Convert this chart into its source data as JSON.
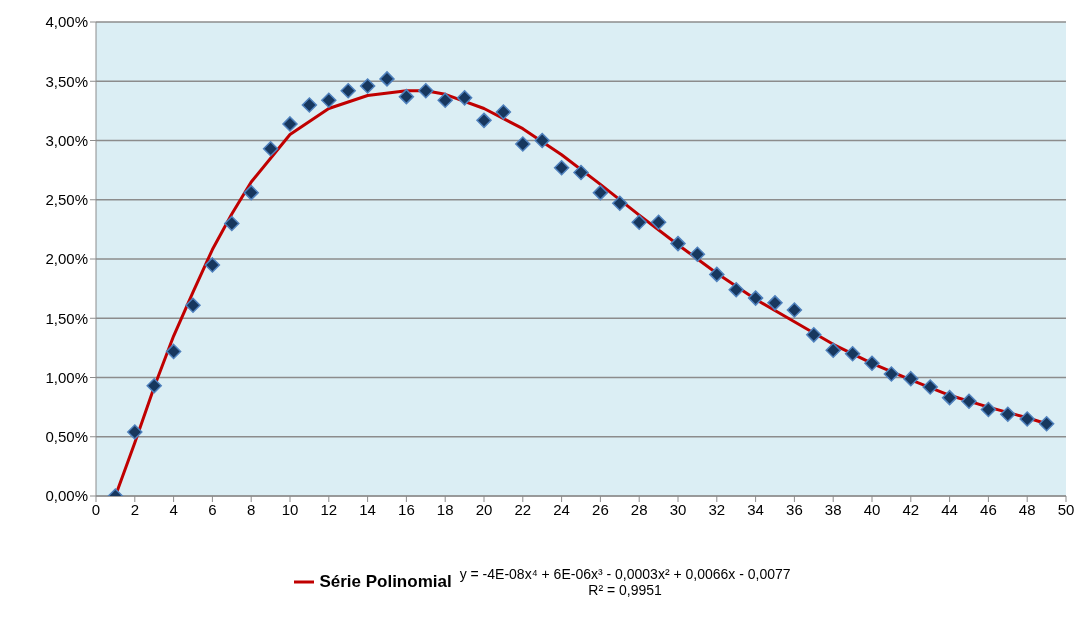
{
  "chart_data": {
    "type": "scatter",
    "xlim": [
      0,
      50
    ],
    "xticks": [
      0,
      2,
      4,
      6,
      8,
      10,
      12,
      14,
      16,
      18,
      20,
      22,
      24,
      26,
      28,
      30,
      32,
      34,
      36,
      38,
      40,
      42,
      44,
      46,
      48,
      50
    ],
    "ylim": [
      0,
      4
    ],
    "yticks": [
      {
        "value": 0,
        "label": "0,00%"
      },
      {
        "value": 0.5,
        "label": "0,50%"
      },
      {
        "value": 1,
        "label": "1,00%"
      },
      {
        "value": 1.5,
        "label": "1,50%"
      },
      {
        "value": 2,
        "label": "2,00%"
      },
      {
        "value": 2.5,
        "label": "2,50%"
      },
      {
        "value": 3,
        "label": "3,00%"
      },
      {
        "value": 3.5,
        "label": "3,50%"
      },
      {
        "value": 4,
        "label": "4,00%"
      }
    ],
    "grid": "y",
    "legend": "bottom",
    "series": [
      {
        "marker": "diamond",
        "color": "#17375e",
        "x": [
          1,
          2,
          3,
          4,
          5,
          6,
          7,
          8,
          9,
          10,
          11,
          12,
          13,
          14,
          15,
          16,
          17,
          18,
          19,
          20,
          21,
          22,
          23,
          24,
          25,
          26,
          27,
          28,
          29,
          30,
          31,
          32,
          33,
          34,
          35,
          36,
          37,
          38,
          39,
          40,
          41,
          42,
          43,
          44,
          45,
          46,
          47,
          48,
          49
        ],
        "values": [
          0,
          0.54,
          0.93,
          1.22,
          1.61,
          1.95,
          2.3,
          2.56,
          2.93,
          3.14,
          3.3,
          3.34,
          3.42,
          3.46,
          3.52,
          3.37,
          3.42,
          3.34,
          3.36,
          3.17,
          3.24,
          2.97,
          3.0,
          2.77,
          2.73,
          2.56,
          2.47,
          2.31,
          2.31,
          2.13,
          2.04,
          1.87,
          1.74,
          1.67,
          1.63,
          1.57,
          1.36,
          1.23,
          1.2,
          1.12,
          1.03,
          0.99,
          0.92,
          0.83,
          0.8,
          0.73,
          0.69,
          0.65,
          0.61
        ]
      },
      {
        "type": "line",
        "name": "Série Polinomial",
        "marker": "none",
        "line_style": "solid",
        "color": "#c00000",
        "x": [
          1,
          2,
          3,
          4,
          5,
          6,
          7,
          8,
          10,
          12,
          14,
          16,
          17,
          18,
          20,
          22,
          24,
          26,
          28,
          30,
          32,
          34,
          36,
          38,
          40,
          42,
          44,
          46,
          48,
          49
        ],
        "values": [
          0,
          0.45,
          0.92,
          1.35,
          1.72,
          2.08,
          2.38,
          2.65,
          3.05,
          3.27,
          3.38,
          3.42,
          3.42,
          3.39,
          3.27,
          3.1,
          2.88,
          2.63,
          2.37,
          2.12,
          1.88,
          1.66,
          1.47,
          1.28,
          1.12,
          0.98,
          0.85,
          0.75,
          0.66,
          0.61
        ]
      }
    ],
    "annotations": [
      "y = -4E-08x⁴ + 6E-06x³ - 0,0003x² + 0,0066x - 0,0077",
      "R² = 0,9951"
    ]
  }
}
